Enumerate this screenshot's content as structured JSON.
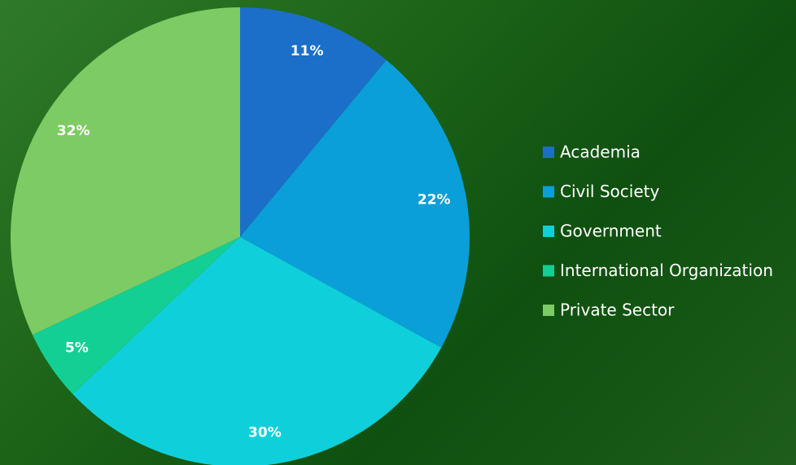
{
  "chart_data": {
    "type": "pie",
    "categories": [
      "Academia",
      "Civil Society",
      "Government",
      "International Organization",
      "Private Sector"
    ],
    "values": [
      11,
      22,
      30,
      5,
      32
    ],
    "value_labels": [
      "11%",
      "22%",
      "30%",
      "5%",
      "32%"
    ],
    "colors": [
      "#1b6fc8",
      "#0a9fd8",
      "#0fd0da",
      "#14cf93",
      "#7dcb64"
    ],
    "legend": "right"
  }
}
